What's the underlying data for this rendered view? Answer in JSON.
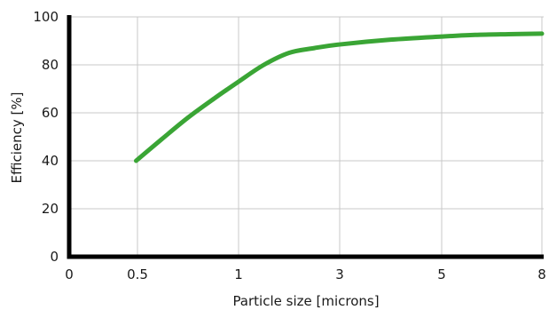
{
  "chart_data": {
    "type": "line",
    "title": "",
    "xlabel": "Particle size [microns]",
    "ylabel": "Efficiency [%]",
    "x_ticks": [
      "0",
      "0.5",
      "1",
      "3",
      "5",
      "8"
    ],
    "y_ticks": [
      0,
      20,
      40,
      60,
      80,
      100
    ],
    "ylim": [
      0,
      100
    ],
    "grid": true,
    "colors": {
      "series": "#3aa535",
      "axis": "#000000",
      "grid": "#c8c8c8"
    },
    "series": [
      {
        "x": [
          0.49,
          0.62,
          0.75,
          0.88,
          1.0,
          1.5,
          2.0,
          2.5,
          3.0,
          4.0,
          5.0,
          6.0,
          7.0,
          8.0
        ],
        "values": [
          40,
          49,
          58,
          66,
          73,
          80,
          85,
          87,
          88.5,
          90.5,
          91.8,
          92.5,
          92.8,
          93
        ]
      }
    ]
  }
}
